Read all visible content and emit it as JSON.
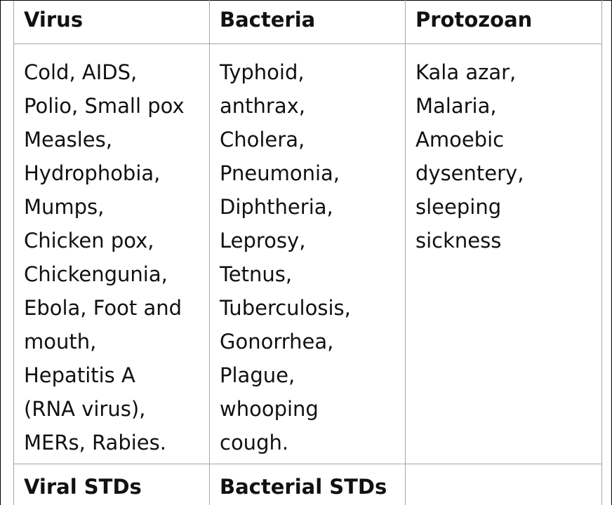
{
  "table": {
    "headers": [
      "Virus",
      "Bacteria",
      "Protozoan"
    ],
    "columns": [
      {
        "lines": [
          "Cold, AIDS,",
          "Polio, Small pox",
          "Measles,",
          "Hydrophobia,",
          "Mumps,",
          "Chicken pox,",
          "Chickengunia,",
          "Ebola, Foot and",
          "mouth,",
          "Hepatitis A",
          "(RNA virus),",
          "MERs, Rabies."
        ]
      },
      {
        "lines": [
          "Typhoid,",
          "anthrax,",
          "Cholera,",
          "Pneumonia,",
          "Diphtheria,",
          "Leprosy,",
          "Tetnus,",
          "Tuberculosis,",
          "Gonorrhea,",
          "Plague,",
          "whooping",
          "cough."
        ]
      },
      {
        "lines": [
          "Kala azar,",
          "Malaria,",
          "Amoebic",
          "dysentery,",
          "sleeping",
          "sickness"
        ]
      }
    ],
    "footer": [
      "Viral STDs",
      "Bacterial STDs",
      ""
    ]
  }
}
